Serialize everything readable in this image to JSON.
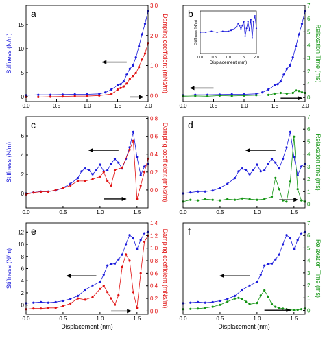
{
  "colors": {
    "stiffness": "#1a1adb",
    "damping": "#e01010",
    "relaxation": "#139413",
    "axis": "#000000"
  },
  "chart_data": [
    {
      "panel": "a",
      "type": "line",
      "xlim": [
        0,
        2.0
      ],
      "xticks": [
        "0.0",
        "0.5",
        "1.0",
        "1.5",
        "2.0"
      ],
      "xlabel": "",
      "left_axis": {
        "label": "Stiffness (N/m)",
        "color": "blue",
        "lim": [
          -1,
          19
        ],
        "ticks": [
          "0",
          "5",
          "10",
          "15"
        ]
      },
      "right_axis": {
        "label": "Damping coefficient (mNs/m)",
        "color": "red",
        "lim": [
          -0.2,
          3.0
        ],
        "ticks": [
          "0.0",
          "1.0",
          "2.0",
          "3.0"
        ]
      },
      "series": [
        {
          "axis": "left",
          "color": "stiffness",
          "x": [
            0,
            0.2,
            0.4,
            0.6,
            0.8,
            1.0,
            1.2,
            1.3,
            1.4,
            1.5,
            1.55,
            1.6,
            1.65,
            1.7,
            1.75,
            1.8,
            1.85,
            1.9,
            1.95,
            2.0
          ],
          "y": [
            0.3,
            0.4,
            0.4,
            0.45,
            0.5,
            0.5,
            0.6,
            0.9,
            1.5,
            2.4,
            2.6,
            3.2,
            4.6,
            5.8,
            6.5,
            8.2,
            10.5,
            13.0,
            15.2,
            17.8
          ]
        },
        {
          "axis": "right",
          "color": "damping",
          "x": [
            0,
            0.2,
            0.4,
            0.6,
            0.8,
            1.0,
            1.2,
            1.4,
            1.5,
            1.55,
            1.6,
            1.65,
            1.7,
            1.75,
            1.8,
            1.85,
            1.9,
            1.95,
            2.0
          ],
          "y": [
            -0.05,
            -0.05,
            -0.04,
            -0.03,
            -0.02,
            -0.02,
            0.0,
            0.05,
            0.2,
            0.25,
            0.3,
            0.4,
            0.55,
            0.65,
            0.75,
            0.95,
            1.2,
            1.4,
            1.75
          ]
        }
      ],
      "arrows": [
        {
          "x1": 1.65,
          "y1": 7.2,
          "x2": 1.25,
          "y2": 7.2,
          "axis": "left"
        },
        {
          "x1": 1.7,
          "y1": -0.05,
          "x2": 1.92,
          "y2": -0.05,
          "axis": "right"
        }
      ]
    },
    {
      "panel": "b",
      "type": "line",
      "xlim": [
        0,
        2.0
      ],
      "xticks": [
        "0.0",
        "0.5",
        "1.0",
        "1.5",
        "2.0"
      ],
      "xlabel": "",
      "left_axis": {
        "label": "",
        "lim": [
          -1,
          19
        ],
        "ticks": []
      },
      "right_axis": {
        "label": "Relaxation Time (ms)",
        "color": "green",
        "lim": [
          -0.3,
          7
        ],
        "ticks": [
          "0",
          "1",
          "2",
          "3",
          "4",
          "5",
          "6",
          "7"
        ]
      },
      "series": [
        {
          "axis": "left",
          "color": "stiffness",
          "x": [
            0,
            0.2,
            0.4,
            0.6,
            0.8,
            1.0,
            1.2,
            1.3,
            1.4,
            1.5,
            1.55,
            1.6,
            1.65,
            1.7,
            1.75,
            1.8,
            1.85,
            1.9,
            1.95,
            2.0
          ],
          "y": [
            0.3,
            0.4,
            0.4,
            0.45,
            0.5,
            0.5,
            0.6,
            0.9,
            1.5,
            2.4,
            2.6,
            3.2,
            4.6,
            5.8,
            6.5,
            8.2,
            10.5,
            13.0,
            15.2,
            17.8
          ]
        },
        {
          "axis": "right",
          "color": "relaxation",
          "x": [
            0,
            0.2,
            0.4,
            0.6,
            0.8,
            1.0,
            1.2,
            1.4,
            1.5,
            1.6,
            1.7,
            1.8,
            1.85,
            1.9,
            1.95,
            2.0
          ],
          "y": [
            0.1,
            0.12,
            0.1,
            0.15,
            0.12,
            0.15,
            0.18,
            0.2,
            0.3,
            0.35,
            0.3,
            0.35,
            0.55,
            0.5,
            0.4,
            0.35
          ]
        }
      ],
      "arrows": [
        {
          "x1": 0.5,
          "y1": 1.8,
          "x2": 0.12,
          "y2": 1.8,
          "axis": "left"
        },
        {
          "x1": 1.6,
          "y1": -0.05,
          "x2": 1.95,
          "y2": -0.05,
          "axis": "right"
        }
      ],
      "inset": {
        "xlabel": "Displacement (nm)",
        "ylabel": "Stiffness (N/m)",
        "xlim": [
          0,
          2.0
        ],
        "xticks": [
          "0.0",
          "0.5",
          "1.0",
          "1.5",
          "2.0"
        ],
        "x": [
          0,
          0.2,
          0.4,
          0.6,
          0.8,
          1.0,
          1.1,
          1.2,
          1.3,
          1.35,
          1.4,
          1.45,
          1.5,
          1.55,
          1.6,
          1.65,
          1.7,
          1.75,
          1.8,
          1.85,
          1.9,
          1.95,
          2.0
        ],
        "y": [
          0.0,
          0.0,
          0.05,
          0.0,
          0.05,
          0.05,
          0.1,
          0.15,
          0.3,
          0.45,
          0.35,
          0.15,
          0.35,
          0.55,
          -0.2,
          0.2,
          0.55,
          0.1,
          0.65,
          -0.3,
          0.55,
          0.85,
          0.2
        ]
      }
    },
    {
      "panel": "c",
      "type": "line",
      "xlim": [
        0,
        1.65
      ],
      "xticks": [
        "0.0",
        "0.5",
        "1.0",
        "1.5"
      ],
      "xlabel": "",
      "left_axis": {
        "label": "Stiffness (N/m)",
        "color": "blue",
        "lim": [
          -1.5,
          8
        ],
        "ticks": [
          "0",
          "2",
          "4",
          "6"
        ]
      },
      "right_axis": {
        "label": "Damping coefficient (mNs/m)",
        "color": "red",
        "lim": [
          -0.2,
          0.82
        ],
        "ticks": [
          "0.0",
          "0.2",
          "0.4",
          "0.6",
          "0.8"
        ]
      },
      "series": [
        {
          "axis": "left",
          "color": "stiffness",
          "x": [
            0,
            0.1,
            0.2,
            0.3,
            0.4,
            0.5,
            0.6,
            0.7,
            0.75,
            0.8,
            0.85,
            0.9,
            0.95,
            1.0,
            1.05,
            1.1,
            1.15,
            1.2,
            1.25,
            1.3,
            1.35,
            1.4,
            1.45,
            1.5,
            1.55,
            1.6,
            1.65
          ],
          "y": [
            0.0,
            0.1,
            0.2,
            0.2,
            0.3,
            0.6,
            1.0,
            1.6,
            2.3,
            2.6,
            2.4,
            2.0,
            2.4,
            3.0,
            2.3,
            2.4,
            3.1,
            3.6,
            3.2,
            2.6,
            3.6,
            4.8,
            6.4,
            3.8,
            1.9,
            2.8,
            3.1
          ]
        },
        {
          "axis": "right",
          "color": "damping",
          "x": [
            0,
            0.1,
            0.2,
            0.3,
            0.4,
            0.5,
            0.6,
            0.7,
            0.8,
            0.9,
            1.0,
            1.05,
            1.1,
            1.15,
            1.2,
            1.3,
            1.4,
            1.45,
            1.5,
            1.55,
            1.6,
            1.65
          ],
          "y": [
            -0.05,
            -0.03,
            -0.02,
            -0.02,
            0.0,
            0.02,
            0.05,
            0.1,
            0.1,
            0.12,
            0.15,
            0.2,
            0.1,
            0.05,
            0.22,
            0.25,
            0.45,
            0.55,
            -0.1,
            0.05,
            0.2,
            0.35
          ]
        }
      ],
      "arrows": [
        {
          "x1": 1.25,
          "y1": 4.5,
          "x2": 0.85,
          "y2": 4.5,
          "axis": "left"
        },
        {
          "x1": 1.05,
          "y1": -0.1,
          "x2": 1.35,
          "y2": -0.1,
          "axis": "right"
        }
      ]
    },
    {
      "panel": "d",
      "type": "line",
      "xlim": [
        0,
        1.65
      ],
      "xticks": [
        "0.0",
        "0.5",
        "1.0",
        "1.5"
      ],
      "xlabel": "",
      "left_axis": {
        "label": "",
        "lim": [
          -1.5,
          8
        ],
        "ticks": []
      },
      "right_axis": {
        "label": "Relaxation time (ms)",
        "color": "green",
        "lim": [
          -0.3,
          7
        ],
        "ticks": [
          "0",
          "1",
          "2",
          "3",
          "4",
          "5",
          "6",
          "7"
        ]
      },
      "series": [
        {
          "axis": "left",
          "color": "stiffness",
          "x": [
            0,
            0.1,
            0.2,
            0.3,
            0.4,
            0.5,
            0.6,
            0.7,
            0.75,
            0.8,
            0.85,
            0.9,
            0.95,
            1.0,
            1.05,
            1.1,
            1.15,
            1.2,
            1.25,
            1.3,
            1.35,
            1.4,
            1.45,
            1.5,
            1.55,
            1.6,
            1.65
          ],
          "y": [
            0.0,
            0.1,
            0.2,
            0.2,
            0.3,
            0.6,
            1.0,
            1.6,
            2.3,
            2.6,
            2.4,
            2.0,
            2.4,
            3.0,
            2.3,
            2.4,
            3.1,
            3.6,
            3.2,
            2.6,
            3.6,
            4.8,
            6.4,
            3.8,
            1.9,
            2.8,
            3.1
          ]
        },
        {
          "axis": "right",
          "color": "relaxation",
          "x": [
            0,
            0.1,
            0.2,
            0.3,
            0.4,
            0.5,
            0.6,
            0.7,
            0.8,
            0.9,
            1.0,
            1.1,
            1.2,
            1.25,
            1.3,
            1.35,
            1.4,
            1.45,
            1.5,
            1.55,
            1.6,
            1.65
          ],
          "y": [
            0.2,
            0.35,
            0.3,
            0.4,
            0.35,
            0.3,
            0.4,
            0.35,
            0.45,
            0.4,
            0.35,
            0.4,
            0.6,
            2.1,
            1.2,
            0.3,
            0.2,
            1.8,
            5.4,
            1.2,
            0.3,
            0.2
          ]
        }
      ],
      "arrows": [
        {
          "x1": 1.25,
          "y1": 4.5,
          "x2": 0.85,
          "y2": 4.5,
          "axis": "left"
        },
        {
          "x1": 1.3,
          "y1": 0.35,
          "x2": 1.55,
          "y2": 0.35,
          "axis": "right"
        }
      ]
    },
    {
      "panel": "e",
      "type": "line",
      "xlim": [
        0,
        1.65
      ],
      "xticks": [
        "0.0",
        "0.5",
        "1.0",
        "1.5"
      ],
      "xlabel": "Displacement (nm)",
      "left_axis": {
        "label": "Stiffness (N/m)",
        "color": "blue",
        "lim": [
          -1.5,
          13.5
        ],
        "ticks": [
          "0",
          "2",
          "4",
          "6",
          "8",
          "10",
          "12"
        ]
      },
      "right_axis": {
        "label": "Damping coefficient (mNs/m)",
        "color": "red",
        "lim": [
          -0.05,
          1.4
        ],
        "ticks": [
          "0.0",
          "0.2",
          "0.4",
          "0.6",
          "0.8",
          "1.0",
          "1.2",
          "1.4"
        ]
      },
      "series": [
        {
          "axis": "left",
          "color": "stiffness",
          "x": [
            0,
            0.1,
            0.2,
            0.3,
            0.4,
            0.5,
            0.6,
            0.7,
            0.8,
            0.9,
            1.0,
            1.05,
            1.1,
            1.15,
            1.2,
            1.25,
            1.3,
            1.35,
            1.4,
            1.45,
            1.5,
            1.55,
            1.6,
            1.65
          ],
          "y": [
            0.3,
            0.4,
            0.5,
            0.4,
            0.5,
            0.7,
            1.0,
            1.5,
            2.5,
            3.2,
            3.8,
            5.0,
            6.5,
            6.7,
            6.8,
            7.5,
            8.3,
            10.0,
            11.5,
            11.0,
            9.2,
            10.7,
            11.8,
            12.0
          ]
        },
        {
          "axis": "right",
          "color": "damping",
          "x": [
            0,
            0.1,
            0.2,
            0.3,
            0.4,
            0.5,
            0.6,
            0.7,
            0.8,
            0.9,
            1.0,
            1.05,
            1.1,
            1.15,
            1.2,
            1.25,
            1.3,
            1.35,
            1.4,
            1.45,
            1.5,
            1.55,
            1.6,
            1.65
          ],
          "y": [
            0.03,
            0.04,
            0.04,
            0.05,
            0.05,
            0.08,
            0.12,
            0.2,
            0.18,
            0.22,
            0.35,
            0.4,
            0.3,
            0.2,
            0.1,
            0.25,
            0.7,
            0.9,
            0.8,
            0.3,
            0.05,
            0.6,
            1.1,
            1.2
          ]
        }
      ],
      "arrows": [
        {
          "x1": 0.95,
          "y1": 4.8,
          "x2": 0.55,
          "y2": 4.8,
          "axis": "left"
        },
        {
          "x1": 1.15,
          "y1": 0.0,
          "x2": 1.42,
          "y2": 0.0,
          "axis": "right"
        }
      ]
    },
    {
      "panel": "f",
      "type": "line",
      "xlim": [
        0,
        1.65
      ],
      "xticks": [
        "0.0",
        "0.5",
        "1.0",
        "1.5"
      ],
      "xlabel": "Displacement (nm)",
      "left_axis": {
        "label": "",
        "lim": [
          -1.5,
          13.5
        ],
        "ticks": []
      },
      "right_axis": {
        "label": "Relaxation Time (ms)",
        "color": "green",
        "lim": [
          -0.3,
          7
        ],
        "ticks": [
          "0",
          "1",
          "2",
          "3",
          "4",
          "5",
          "6",
          "7"
        ]
      },
      "series": [
        {
          "axis": "left",
          "color": "stiffness",
          "x": [
            0,
            0.1,
            0.2,
            0.3,
            0.4,
            0.5,
            0.6,
            0.7,
            0.8,
            0.9,
            1.0,
            1.05,
            1.1,
            1.15,
            1.2,
            1.25,
            1.3,
            1.35,
            1.4,
            1.45,
            1.5,
            1.55,
            1.6,
            1.65
          ],
          "y": [
            0.3,
            0.4,
            0.5,
            0.4,
            0.5,
            0.7,
            1.0,
            1.5,
            2.5,
            3.2,
            3.8,
            5.0,
            6.5,
            6.7,
            6.8,
            7.5,
            8.3,
            10.0,
            11.5,
            11.0,
            9.2,
            10.7,
            11.8,
            12.0
          ]
        },
        {
          "axis": "right",
          "color": "relaxation",
          "x": [
            0,
            0.1,
            0.2,
            0.3,
            0.4,
            0.5,
            0.6,
            0.7,
            0.75,
            0.8,
            0.85,
            0.9,
            1.0,
            1.05,
            1.1,
            1.15,
            1.2,
            1.25,
            1.3,
            1.35,
            1.4,
            1.45,
            1.5,
            1.55,
            1.6,
            1.65
          ],
          "y": [
            0.1,
            0.12,
            0.15,
            0.2,
            0.3,
            0.45,
            0.7,
            0.95,
            1.0,
            0.9,
            0.7,
            0.5,
            0.6,
            1.2,
            1.6,
            1.1,
            0.5,
            0.3,
            0.2,
            0.15,
            0.1,
            0.05,
            0.02,
            0.05,
            0.1,
            0.15
          ]
        }
      ],
      "arrows": [
        {
          "x1": 0.9,
          "y1": 4.8,
          "x2": 0.5,
          "y2": 4.8,
          "axis": "left"
        },
        {
          "x1": 1.1,
          "y1": 0.02,
          "x2": 1.45,
          "y2": 0.02,
          "axis": "right"
        }
      ]
    }
  ]
}
